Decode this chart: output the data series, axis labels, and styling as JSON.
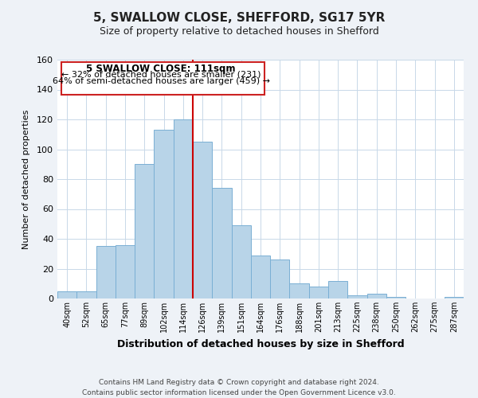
{
  "title": "5, SWALLOW CLOSE, SHEFFORD, SG17 5YR",
  "subtitle": "Size of property relative to detached houses in Shefford",
  "xlabel": "Distribution of detached houses by size in Shefford",
  "ylabel": "Number of detached properties",
  "bar_labels": [
    "40sqm",
    "52sqm",
    "65sqm",
    "77sqm",
    "89sqm",
    "102sqm",
    "114sqm",
    "126sqm",
    "139sqm",
    "151sqm",
    "164sqm",
    "176sqm",
    "188sqm",
    "201sqm",
    "213sqm",
    "225sqm",
    "238sqm",
    "250sqm",
    "262sqm",
    "275sqm",
    "287sqm"
  ],
  "bar_values": [
    5,
    5,
    35,
    36,
    90,
    113,
    120,
    105,
    74,
    49,
    29,
    26,
    10,
    8,
    12,
    2,
    3,
    1,
    0,
    0,
    1
  ],
  "bar_color": "#b8d4e8",
  "bar_edge_color": "#7aafd4",
  "ylim": [
    0,
    160
  ],
  "yticks": [
    0,
    20,
    40,
    60,
    80,
    100,
    120,
    140,
    160
  ],
  "vline_x": 6.5,
  "vline_color": "#cc0000",
  "annotation_title": "5 SWALLOW CLOSE: 111sqm",
  "annotation_line1": "← 32% of detached houses are smaller (231)",
  "annotation_line2": "64% of semi-detached houses are larger (459) →",
  "footer1": "Contains HM Land Registry data © Crown copyright and database right 2024.",
  "footer2": "Contains public sector information licensed under the Open Government Licence v3.0.",
  "bg_color": "#eef2f7",
  "plot_bg_color": "#ffffff",
  "grid_color": "#c8d8e8"
}
